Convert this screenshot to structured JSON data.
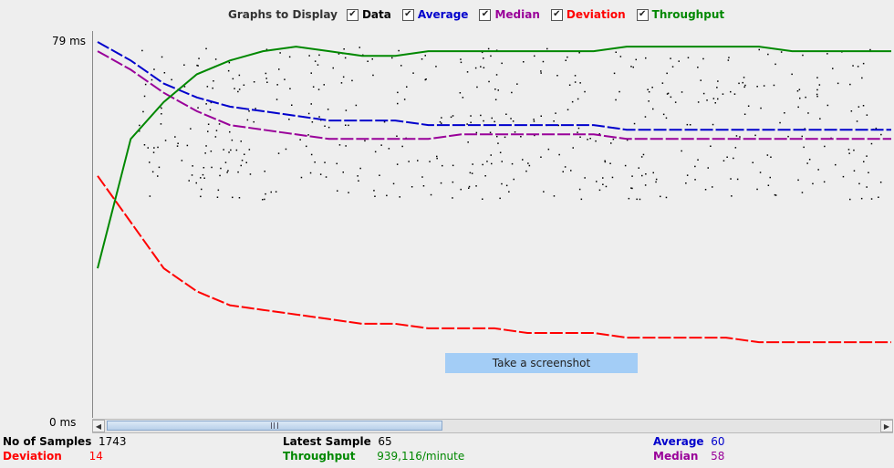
{
  "legend": {
    "label": "Graphs to Display",
    "items": [
      {
        "label": "Data",
        "color": "#000000",
        "checked": true
      },
      {
        "label": "Average",
        "color": "#0000cc",
        "checked": true
      },
      {
        "label": "Median",
        "color": "#990099",
        "checked": true
      },
      {
        "label": "Deviation",
        "color": "#ff0000",
        "checked": true
      },
      {
        "label": "Throughput",
        "color": "#008800",
        "checked": true
      }
    ]
  },
  "axis": {
    "y_max_label": "79  ms",
    "y_min_label": "0  ms"
  },
  "tooltip": "Take a screenshot",
  "stats": {
    "samples_label": "No of Samples",
    "samples_value": "1743",
    "deviation_label": "Deviation",
    "deviation_value": "14",
    "latest_label": "Latest Sample",
    "latest_value": "65",
    "throughput_label": "Throughput",
    "throughput_value": "939,116/minute",
    "average_label": "Average",
    "average_value": "60",
    "median_label": "Median",
    "median_value": "58"
  },
  "chart_data": {
    "type": "line",
    "ylim": [
      0,
      79
    ],
    "series": [
      {
        "name": "Average",
        "color": "#0000cc",
        "values": [
          79,
          75,
          70,
          67,
          65,
          64,
          63,
          62,
          62,
          62,
          61,
          61,
          61,
          61,
          61,
          61,
          60,
          60,
          60,
          60,
          60,
          60,
          60,
          60,
          60
        ]
      },
      {
        "name": "Median",
        "color": "#990099",
        "values": [
          77,
          73,
          68,
          64,
          61,
          60,
          59,
          58,
          58,
          58,
          58,
          59,
          59,
          59,
          59,
          59,
          58,
          58,
          58,
          58,
          58,
          58,
          58,
          58,
          58
        ]
      },
      {
        "name": "Deviation",
        "color": "#ff0000",
        "values": [
          50,
          40,
          30,
          25,
          22,
          21,
          20,
          19,
          18,
          18,
          17,
          17,
          17,
          16,
          16,
          16,
          15,
          15,
          15,
          15,
          14,
          14,
          14,
          14,
          14
        ]
      },
      {
        "name": "Throughput",
        "color": "#008800",
        "values": [
          30,
          58,
          66,
          72,
          75,
          77,
          78,
          77,
          76,
          76,
          77,
          77,
          77,
          77,
          77,
          77,
          78,
          78,
          78,
          78,
          78,
          77,
          77,
          77,
          77
        ]
      }
    ]
  }
}
